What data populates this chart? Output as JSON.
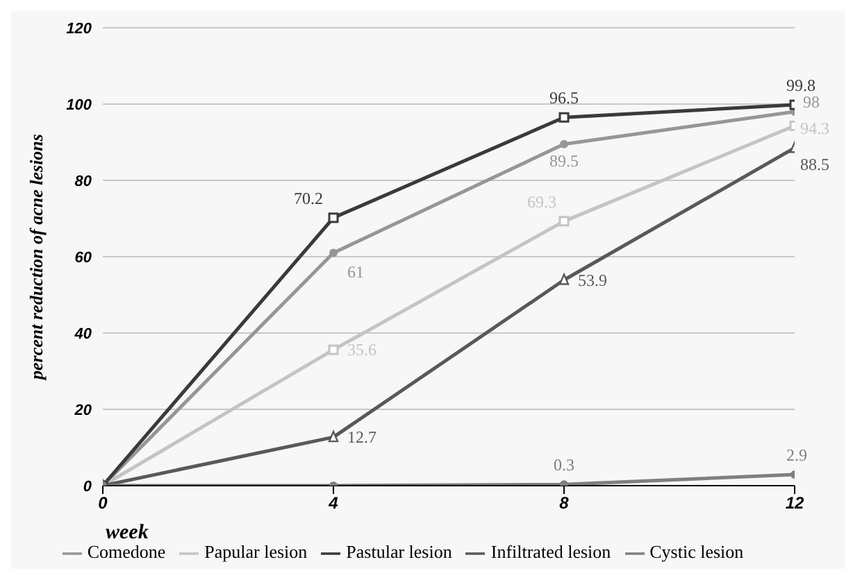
{
  "chart_data": {
    "type": "line",
    "xlabel": "week",
    "ylabel": "percent reduction of acne lesions",
    "x": [
      0,
      4,
      8,
      12
    ],
    "xlim": [
      0,
      12
    ],
    "xticks": [
      0,
      4,
      8,
      12
    ],
    "ylim": [
      0,
      120
    ],
    "yticks": [
      0,
      20,
      40,
      60,
      80,
      100,
      120
    ],
    "grid": "y",
    "legend": "bottom",
    "series": [
      {
        "name": "Comedone",
        "color": "#969696",
        "marker": "circle",
        "values": [
          0,
          61,
          89.5,
          98
        ],
        "value_labels": [
          null,
          "61",
          "89.5",
          "98"
        ]
      },
      {
        "name": "Papular lesion",
        "color": "#c4c4c4",
        "marker": "square",
        "values": [
          0,
          35.6,
          69.3,
          94.3
        ],
        "value_labels": [
          null,
          "35.6",
          "69.3",
          "94.3"
        ]
      },
      {
        "name": "Pastular lesion",
        "color": "#3a3a3a",
        "marker": "square",
        "values": [
          0,
          70.2,
          96.5,
          99.8
        ],
        "value_labels": [
          null,
          "70.2",
          "96.5",
          "99.8"
        ]
      },
      {
        "name": "Infiltrated lesion",
        "color": "#595959",
        "marker": "triangle",
        "values": [
          0,
          12.7,
          53.9,
          88.5
        ],
        "value_labels": [
          null,
          "12.7",
          "53.9",
          "88.5"
        ]
      },
      {
        "name": "Cystic lesion",
        "color": "#7f7f7f",
        "marker": "circle",
        "values": [
          0,
          0,
          0.3,
          2.9
        ],
        "value_labels": [
          null,
          null,
          "0.3",
          "2.9"
        ]
      }
    ]
  }
}
